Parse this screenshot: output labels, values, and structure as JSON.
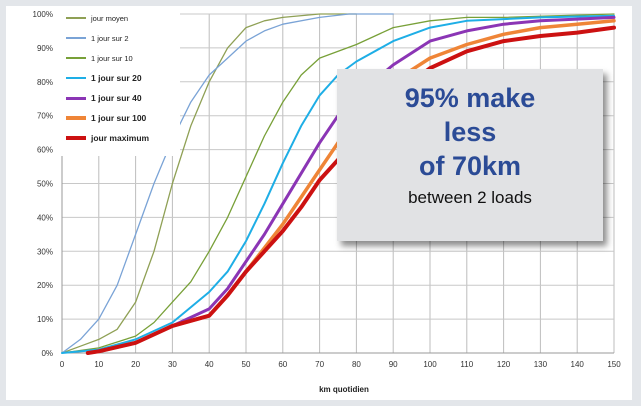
{
  "chart_data": {
    "type": "line",
    "xlabel": "km quotidien",
    "ylabel": "",
    "xlim": [
      0,
      150
    ],
    "ylim": [
      0,
      100
    ],
    "x_ticks": [
      "0",
      "10",
      "20",
      "30",
      "40",
      "50",
      "60",
      "70",
      "80",
      "90",
      "100",
      "110",
      "120",
      "130",
      "140",
      "150"
    ],
    "y_ticks": [
      "0%",
      "10%",
      "20%",
      "30%",
      "40%",
      "50%",
      "60%",
      "70%",
      "80%",
      "90%",
      "100%"
    ],
    "grid": true,
    "legend_position": "top-left",
    "series": [
      {
        "name": "jour moyen",
        "color": "#8fa055",
        "width": 1.3,
        "bold": false,
        "points": [
          [
            0,
            0
          ],
          [
            5,
            2
          ],
          [
            10,
            4
          ],
          [
            15,
            7
          ],
          [
            20,
            15
          ],
          [
            25,
            30
          ],
          [
            30,
            50
          ],
          [
            35,
            67
          ],
          [
            40,
            80
          ],
          [
            45,
            90
          ],
          [
            50,
            96
          ],
          [
            55,
            98
          ],
          [
            60,
            99
          ],
          [
            70,
            100
          ],
          [
            80,
            100
          ]
        ]
      },
      {
        "name": "1 jour sur 2",
        "color": "#7aa3d6",
        "width": 1.3,
        "bold": false,
        "points": [
          [
            0,
            0
          ],
          [
            5,
            4
          ],
          [
            10,
            10
          ],
          [
            15,
            20
          ],
          [
            20,
            35
          ],
          [
            25,
            50
          ],
          [
            30,
            63
          ],
          [
            35,
            74
          ],
          [
            40,
            82
          ],
          [
            45,
            87
          ],
          [
            50,
            92
          ],
          [
            55,
            95
          ],
          [
            60,
            97
          ],
          [
            70,
            99
          ],
          [
            78,
            100
          ],
          [
            90,
            100
          ]
        ]
      },
      {
        "name": "1 jour sur 10",
        "color": "#78a038",
        "width": 1.3,
        "bold": false,
        "points": [
          [
            0,
            0
          ],
          [
            10,
            1.5
          ],
          [
            20,
            5
          ],
          [
            25,
            9
          ],
          [
            30,
            15
          ],
          [
            35,
            21
          ],
          [
            40,
            30
          ],
          [
            45,
            40
          ],
          [
            50,
            52
          ],
          [
            55,
            64
          ],
          [
            60,
            74
          ],
          [
            65,
            82
          ],
          [
            70,
            87
          ],
          [
            80,
            91
          ],
          [
            90,
            96
          ],
          [
            100,
            98
          ],
          [
            110,
            99
          ],
          [
            120,
            99
          ],
          [
            150,
            100
          ]
        ]
      },
      {
        "name": "1 jour sur 20",
        "color": "#1eaee6",
        "width": 2,
        "bold": true,
        "points": [
          [
            0,
            0
          ],
          [
            10,
            1
          ],
          [
            20,
            4
          ],
          [
            30,
            9
          ],
          [
            40,
            18
          ],
          [
            45,
            24
          ],
          [
            50,
            33
          ],
          [
            55,
            44
          ],
          [
            60,
            56
          ],
          [
            65,
            67
          ],
          [
            70,
            76
          ],
          [
            75,
            82
          ],
          [
            80,
            86
          ],
          [
            90,
            92
          ],
          [
            100,
            96
          ],
          [
            110,
            98
          ],
          [
            120,
            98.5
          ],
          [
            130,
            99
          ],
          [
            150,
            99.5
          ]
        ]
      },
      {
        "name": "1 jour sur 40",
        "color": "#8b35b5",
        "width": 3,
        "bold": true,
        "points": [
          [
            7,
            0
          ],
          [
            10,
            0.5
          ],
          [
            20,
            3
          ],
          [
            30,
            8
          ],
          [
            40,
            13
          ],
          [
            45,
            19
          ],
          [
            50,
            27
          ],
          [
            55,
            35
          ],
          [
            60,
            44
          ],
          [
            65,
            53
          ],
          [
            70,
            62
          ],
          [
            75,
            70
          ],
          [
            80,
            76
          ],
          [
            90,
            85
          ],
          [
            100,
            92
          ],
          [
            110,
            95
          ],
          [
            120,
            97
          ],
          [
            130,
            98
          ],
          [
            140,
            98.5
          ],
          [
            150,
            99
          ]
        ]
      },
      {
        "name": "1 jour sur 100",
        "color": "#ef8537",
        "width": 3.5,
        "bold": true,
        "points": [
          [
            7,
            0
          ],
          [
            10,
            0.5
          ],
          [
            20,
            3
          ],
          [
            30,
            8
          ],
          [
            40,
            11
          ],
          [
            45,
            17
          ],
          [
            50,
            24
          ],
          [
            55,
            31
          ],
          [
            60,
            38
          ],
          [
            65,
            46
          ],
          [
            70,
            54
          ],
          [
            75,
            62
          ],
          [
            80,
            69
          ],
          [
            90,
            80
          ],
          [
            100,
            87
          ],
          [
            110,
            91
          ],
          [
            120,
            94
          ],
          [
            130,
            96
          ],
          [
            140,
            97
          ],
          [
            150,
            98
          ]
        ]
      },
      {
        "name": "jour maximum",
        "color": "#cc1111",
        "width": 4,
        "bold": true,
        "points": [
          [
            7,
            0
          ],
          [
            10,
            0.5
          ],
          [
            20,
            3
          ],
          [
            30,
            8
          ],
          [
            40,
            11
          ],
          [
            45,
            17
          ],
          [
            50,
            24
          ],
          [
            55,
            30
          ],
          [
            60,
            36
          ],
          [
            65,
            43
          ],
          [
            70,
            51
          ],
          [
            75,
            57
          ],
          [
            80,
            64
          ],
          [
            90,
            76
          ],
          [
            100,
            84
          ],
          [
            110,
            89
          ],
          [
            120,
            92
          ],
          [
            130,
            93.5
          ],
          [
            140,
            94.5
          ],
          [
            150,
            96
          ]
        ]
      }
    ]
  },
  "callout": {
    "line1": "95% make",
    "line2": "less",
    "line3": "of 70km",
    "line4": "between 2 loads"
  }
}
